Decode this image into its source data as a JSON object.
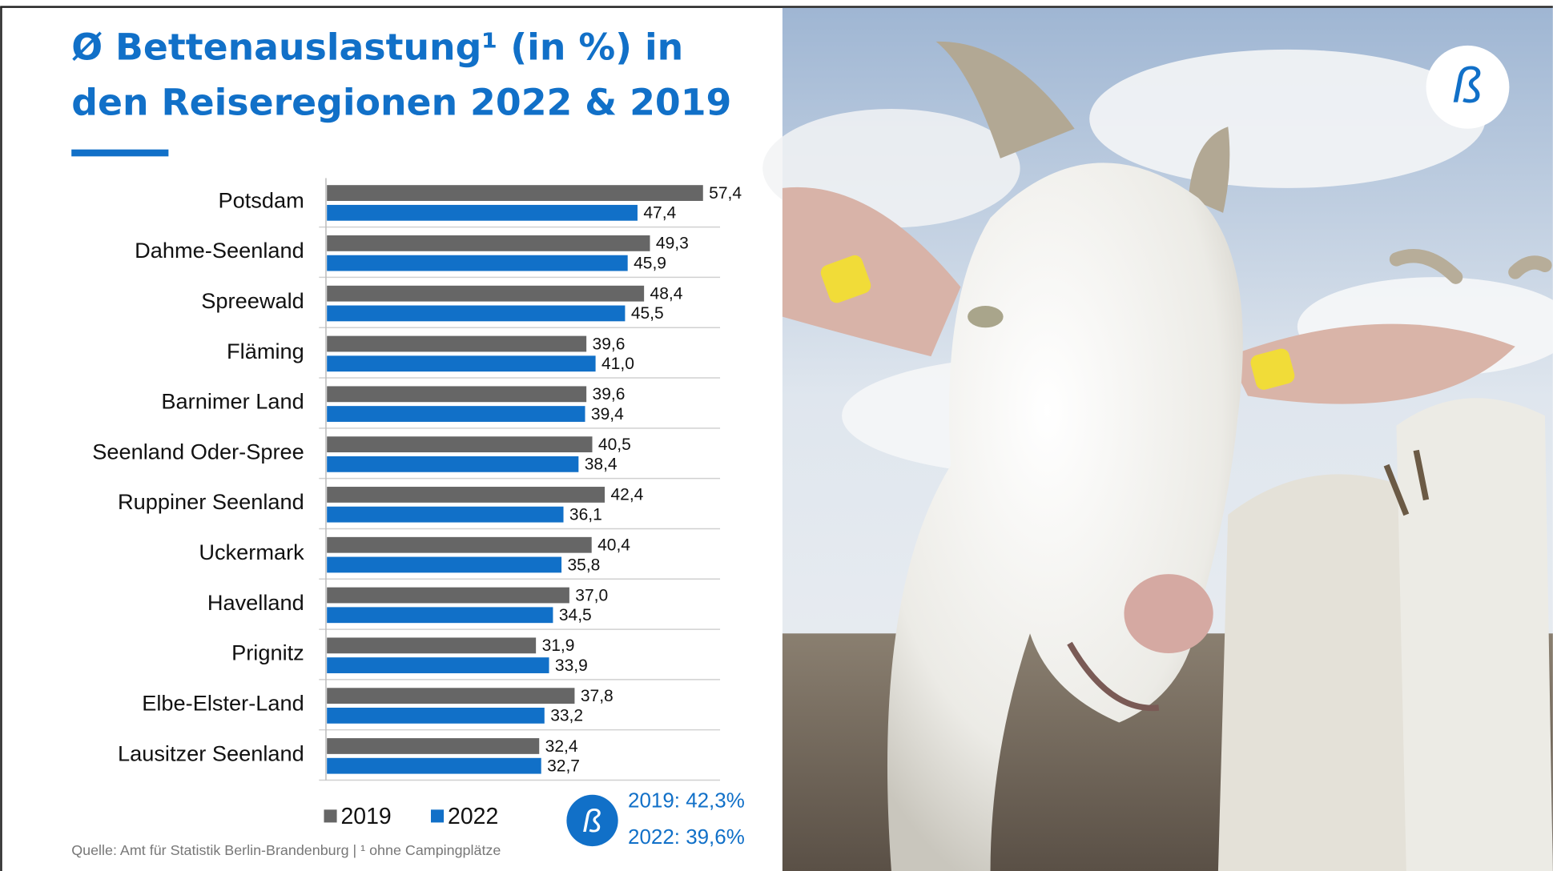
{
  "chart_data": {
    "type": "bar",
    "orientation": "horizontal",
    "title": [
      "Ø Bettenauslastung¹ (in %) in",
      "den Reiseregionen 2022 & 2019"
    ],
    "categories": [
      "Potsdam",
      "Dahme-Seenland",
      "Spreewald",
      "Fläming",
      "Barnimer Land",
      "Seenland Oder-Spree",
      "Ruppiner Seenland",
      "Uckermark",
      "Havelland",
      "Prignitz",
      "Elbe-Elster-Land",
      "Lausitzer Seenland"
    ],
    "series": [
      {
        "name": "2019",
        "color": "#666666",
        "values": [
          57.4,
          49.3,
          48.4,
          39.6,
          39.6,
          40.5,
          42.4,
          40.4,
          37.0,
          31.9,
          37.8,
          32.4
        ],
        "value_labels": [
          "57,4",
          "49,3",
          "48,4",
          "39,6",
          "39,6",
          "40,5",
          "42,4",
          "40,4",
          "37,0",
          "31,9",
          "37,8",
          "32,4"
        ]
      },
      {
        "name": "2022",
        "color": "#1170c8",
        "values": [
          47.4,
          45.9,
          45.5,
          41.0,
          39.4,
          38.4,
          36.1,
          35.8,
          34.5,
          33.9,
          33.2,
          32.7
        ],
        "value_labels": [
          "47,4",
          "45,9",
          "45,5",
          "41,0",
          "39,4",
          "38,4",
          "36,1",
          "35,8",
          "34,5",
          "33,9",
          "33,2",
          "32,7"
        ]
      }
    ],
    "xlim": [
      0,
      60
    ],
    "annotations": [
      "2019: 42,3%",
      "2022: 39,6%"
    ],
    "source": "Quelle: Amt für Statistik Berlin-Brandenburg  |  ¹ ohne Campingplätze"
  }
}
